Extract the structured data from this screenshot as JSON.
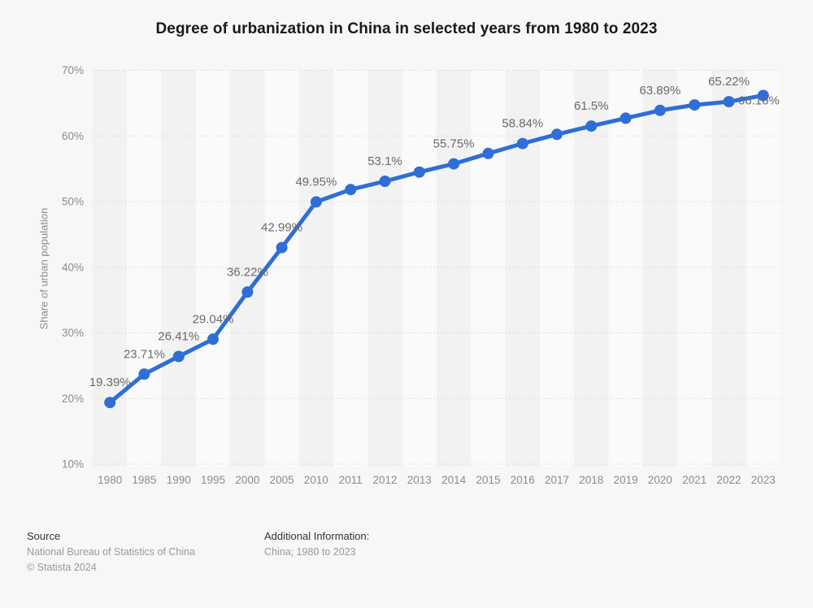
{
  "page": {
    "background": "#f7f7f7"
  },
  "header": {
    "title": "Degree of urbanization in China in selected years from 1980 to 2023"
  },
  "chart_data": {
    "type": "line",
    "title": "Degree of urbanization in China in selected years from 1980 to 2023",
    "xlabel": "",
    "ylabel": "Share of urban population",
    "ylim": [
      10,
      70
    ],
    "ytick_step": 10,
    "ytick_suffix": "%",
    "grid": "horizontal-dotted",
    "legend": "none",
    "categories": [
      "1980",
      "1985",
      "1990",
      "1995",
      "2000",
      "2005",
      "2010",
      "2011",
      "2012",
      "2013",
      "2014",
      "2015",
      "2016",
      "2017",
      "2018",
      "2019",
      "2020",
      "2021",
      "2022",
      "2023"
    ],
    "values": [
      19.39,
      23.71,
      26.41,
      29.04,
      36.22,
      42.99,
      49.95,
      51.83,
      53.1,
      54.49,
      55.75,
      57.33,
      58.84,
      60.24,
      61.5,
      62.71,
      63.89,
      64.72,
      65.22,
      66.16
    ],
    "point_labels": [
      "19.39%",
      "23.71%",
      "26.41%",
      "29.04%",
      "36.22%",
      "42.99%",
      "49.95%",
      "",
      "53.1%",
      "",
      "55.75%",
      "",
      "58.84%",
      "",
      "61.5%",
      "",
      "63.89%",
      "",
      "65.22%",
      "66.16%"
    ],
    "line_color": "#2e6ed6",
    "label_color": "#6b6b6b",
    "tick_color": "#8c8c8c",
    "gridline_color": "#c8c8c8",
    "stripe_colors": [
      "#f2f2f2",
      "#fafafa"
    ]
  },
  "footer": {
    "source_label": "Source",
    "source_name": "National Bureau of Statistics of China",
    "copyright": "© Statista 2024",
    "additional_label": "Additional Information:",
    "additional_value": "China; 1980 to 2023"
  }
}
